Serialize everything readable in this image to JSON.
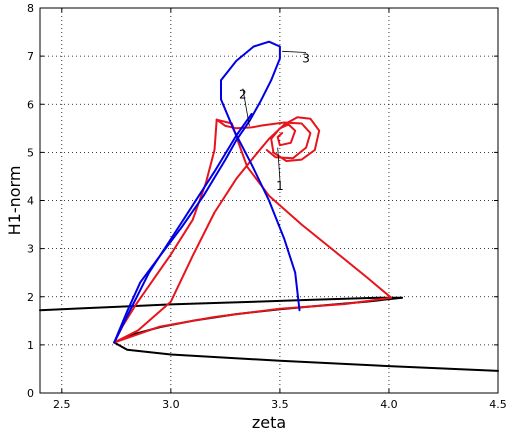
{
  "chart_data": {
    "type": "line",
    "title": "",
    "xlabel": "zeta",
    "ylabel": "H1-norm",
    "xlim": [
      2.4,
      4.5
    ],
    "ylim": [
      0,
      8
    ],
    "xticks": [
      2.5,
      3.0,
      3.5,
      4.0,
      4.5
    ],
    "xtick_labels": [
      "2.5",
      "3.0",
      "3.5",
      "4.0",
      "4.5"
    ],
    "yticks": [
      0,
      1,
      2,
      3,
      4,
      5,
      6,
      7,
      8
    ],
    "ytick_labels": [
      "0",
      "1",
      "2",
      "3",
      "4",
      "5",
      "6",
      "7",
      "8"
    ],
    "grid": true,
    "grid_style": "dotted",
    "legend": "none",
    "series": [
      {
        "color": "#000000",
        "segments": [
          [
            [
              2.4,
              1.72
            ],
            [
              2.6,
              1.76
            ],
            [
              2.8,
              1.8
            ],
            [
              3.0,
              1.84
            ],
            [
              3.2,
              1.87
            ],
            [
              3.4,
              1.9
            ],
            [
              3.6,
              1.93
            ],
            [
              3.8,
              1.96
            ],
            [
              3.95,
              1.98
            ],
            [
              4.06,
              1.98
            ]
          ],
          [
            [
              4.06,
              1.98
            ],
            [
              3.9,
              1.9
            ],
            [
              3.7,
              1.82
            ],
            [
              3.5,
              1.74
            ],
            [
              3.3,
              1.64
            ],
            [
              3.1,
              1.5
            ],
            [
              2.95,
              1.37
            ],
            [
              2.82,
              1.21
            ],
            [
              2.74,
              1.05
            ]
          ],
          [
            [
              2.74,
              1.05
            ],
            [
              2.8,
              0.9
            ],
            [
              3.0,
              0.8
            ],
            [
              3.5,
              0.67
            ],
            [
              4.0,
              0.56
            ],
            [
              4.5,
              0.46
            ]
          ]
        ]
      },
      {
        "color": "#e8141c",
        "segments": [
          [
            [
              2.74,
              1.05
            ],
            [
              2.78,
              1.4
            ],
            [
              2.84,
              1.84
            ],
            [
              2.92,
              2.36
            ],
            [
              3.0,
              2.88
            ],
            [
              3.1,
              3.6
            ],
            [
              3.16,
              4.36
            ],
            [
              3.2,
              5.05
            ],
            [
              3.21,
              5.68
            ]
          ],
          [
            [
              3.21,
              5.68
            ],
            [
              3.25,
              5.55
            ],
            [
              3.3,
              5.5
            ],
            [
              3.37,
              5.52
            ],
            [
              3.42,
              5.56
            ]
          ],
          [
            [
              2.74,
              1.05
            ],
            [
              2.85,
              1.3
            ],
            [
              3.0,
              1.9
            ],
            [
              3.1,
              2.85
            ],
            [
              3.2,
              3.75
            ],
            [
              3.3,
              4.45
            ],
            [
              3.38,
              4.9
            ],
            [
              3.45,
              5.28
            ],
            [
              3.52,
              5.58
            ],
            [
              3.58,
              5.73
            ],
            [
              3.64,
              5.7
            ],
            [
              3.68,
              5.45
            ],
            [
              3.66,
              5.05
            ],
            [
              3.6,
              4.85
            ],
            [
              3.53,
              4.82
            ],
            [
              3.47,
              5.0
            ],
            [
              3.46,
              5.28
            ],
            [
              3.5,
              5.5
            ],
            [
              3.54,
              5.58
            ],
            [
              3.57,
              5.45
            ],
            [
              3.55,
              5.2
            ],
            [
              3.5,
              5.15
            ],
            [
              3.49,
              5.32
            ],
            [
              3.51,
              5.4
            ]
          ],
          [
            [
              3.42,
              5.56
            ],
            [
              3.52,
              5.62
            ],
            [
              3.6,
              5.6
            ],
            [
              3.64,
              5.4
            ],
            [
              3.62,
              5.1
            ],
            [
              3.56,
              4.88
            ],
            [
              3.48,
              4.9
            ],
            [
              3.44,
              5.05
            ]
          ],
          [
            [
              3.21,
              5.68
            ],
            [
              3.28,
              5.6
            ],
            [
              3.31,
              5.2
            ],
            [
              3.35,
              4.7
            ],
            [
              3.45,
              4.1
            ],
            [
              3.6,
              3.5
            ],
            [
              3.75,
              2.95
            ],
            [
              3.9,
              2.4
            ],
            [
              4.01,
              1.98
            ]
          ],
          [
            [
              4.01,
              1.98
            ],
            [
              3.8,
              1.85
            ],
            [
              3.5,
              1.75
            ],
            [
              3.2,
              1.58
            ],
            [
              2.95,
              1.38
            ],
            [
              2.74,
              1.05
            ]
          ]
        ]
      },
      {
        "color": "#0000e6",
        "segments": [
          [
            [
              2.74,
              1.05
            ],
            [
              2.8,
              1.7
            ],
            [
              2.86,
              2.3
            ],
            [
              2.95,
              2.85
            ],
            [
              3.05,
              3.45
            ],
            [
              3.15,
              4.1
            ],
            [
              3.25,
              4.85
            ],
            [
              3.3,
              5.25
            ],
            [
              3.36,
              5.65
            ],
            [
              3.41,
              6.05
            ],
            [
              3.46,
              6.5
            ],
            [
              3.5,
              6.95
            ],
            [
              3.5,
              7.2
            ],
            [
              3.45,
              7.3
            ],
            [
              3.38,
              7.2
            ],
            [
              3.3,
              6.9
            ],
            [
              3.23,
              6.5
            ],
            [
              3.23,
              6.1
            ],
            [
              3.29,
              5.45
            ],
            [
              3.37,
              4.75
            ],
            [
              3.45,
              4.0
            ],
            [
              3.52,
              3.2
            ],
            [
              3.57,
              2.5
            ],
            [
              3.59,
              1.72
            ]
          ],
          [
            [
              2.74,
              1.05
            ],
            [
              2.8,
              1.6
            ],
            [
              2.9,
              2.5
            ],
            [
              3.0,
              3.2
            ],
            [
              3.1,
              3.9
            ],
            [
              3.2,
              4.6
            ],
            [
              3.3,
              5.35
            ],
            [
              3.37,
              5.8
            ]
          ]
        ]
      }
    ],
    "annotations": [
      {
        "text": "1",
        "x": 3.5,
        "y": 4.3,
        "target": [
          3.49,
          5.1
        ]
      },
      {
        "text": "2",
        "x": 3.33,
        "y": 6.2,
        "target": [
          3.36,
          5.55
        ]
      },
      {
        "text": "3",
        "x": 3.62,
        "y": 6.95,
        "target": [
          3.51,
          7.1
        ]
      }
    ]
  }
}
